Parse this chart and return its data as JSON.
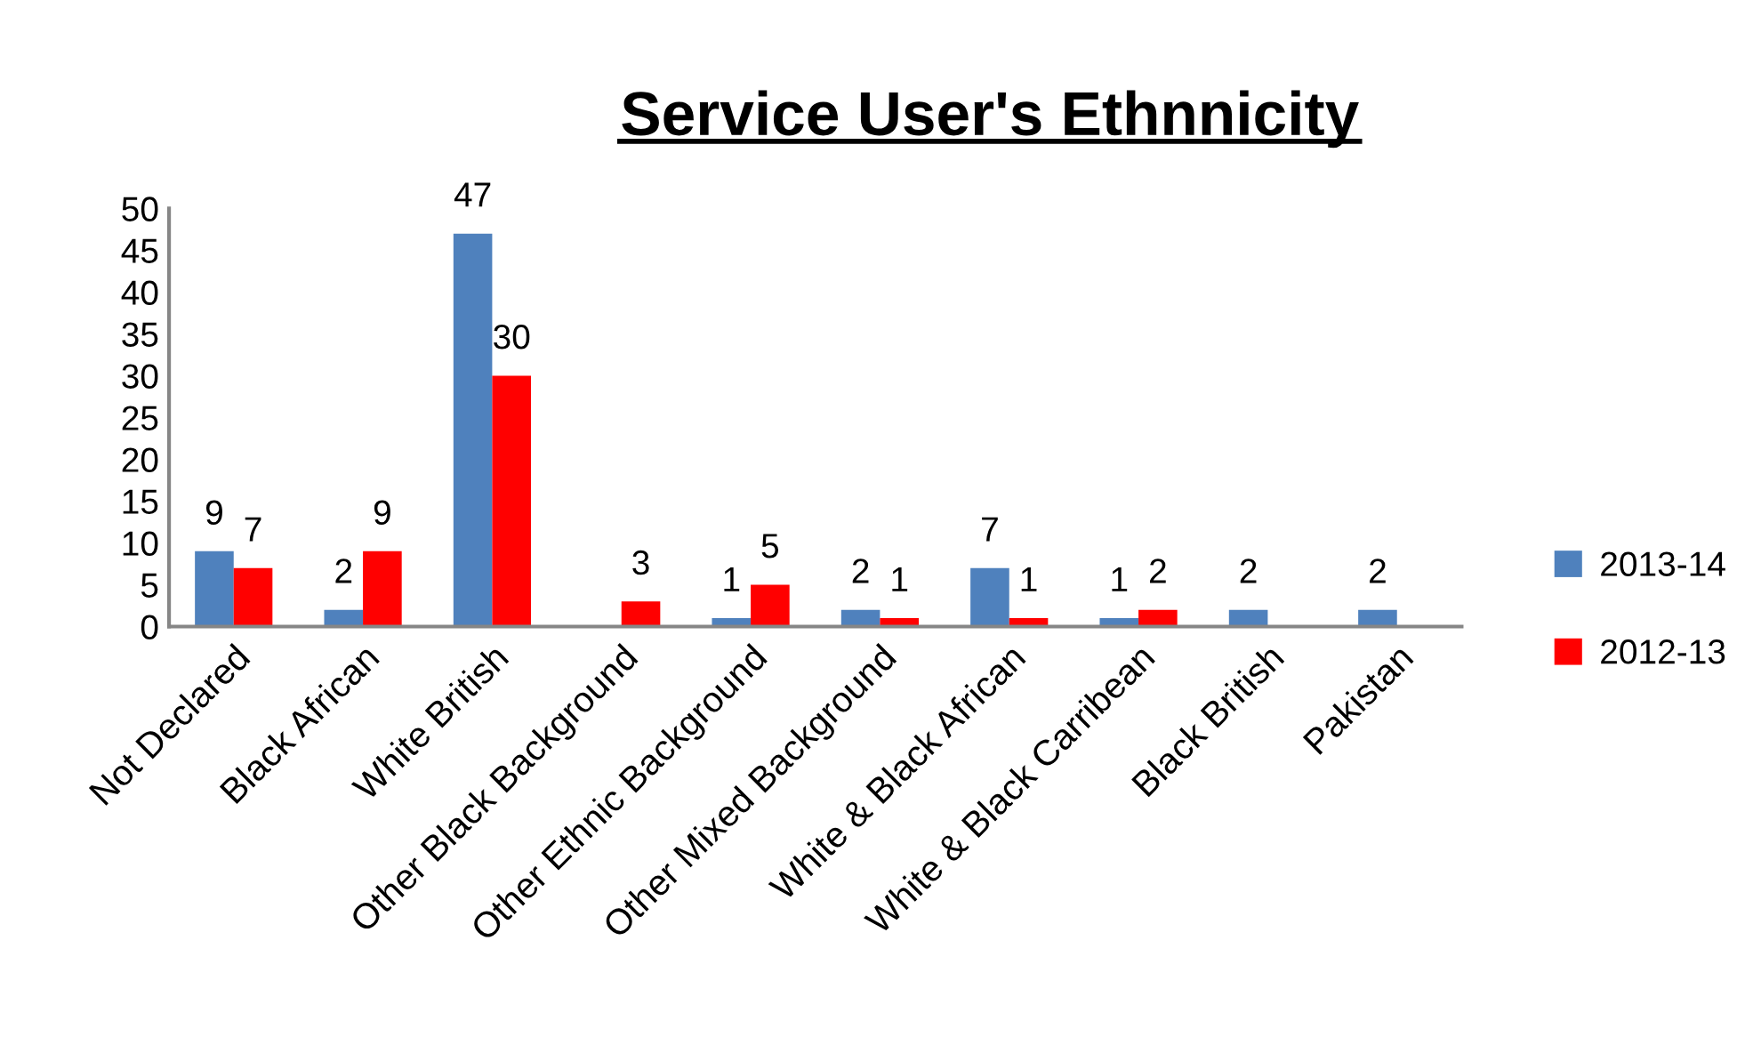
{
  "chart_data": {
    "type": "bar",
    "title": "Service User's Ethnnicity",
    "categories": [
      "Not Declared",
      "Black African",
      "White British",
      "Other Black Background",
      "Other Ethnic Background",
      "Other Mixed Background",
      "White & Black African",
      "White & Black Carribean",
      "Black British",
      "Pakistan"
    ],
    "series": [
      {
        "name": "2013-14",
        "color": "#4f81bd",
        "values": [
          9,
          2,
          47,
          null,
          1,
          2,
          7,
          1,
          2,
          2
        ]
      },
      {
        "name": "2012-13",
        "color": "#ff0000",
        "values": [
          7,
          9,
          30,
          3,
          5,
          1,
          1,
          2,
          null,
          null
        ]
      }
    ],
    "ylim": [
      0,
      50
    ],
    "yticks": [
      0,
      5,
      10,
      15,
      20,
      25,
      30,
      35,
      40,
      45,
      50
    ],
    "data_labels": true,
    "legend": "right",
    "grid": false
  }
}
